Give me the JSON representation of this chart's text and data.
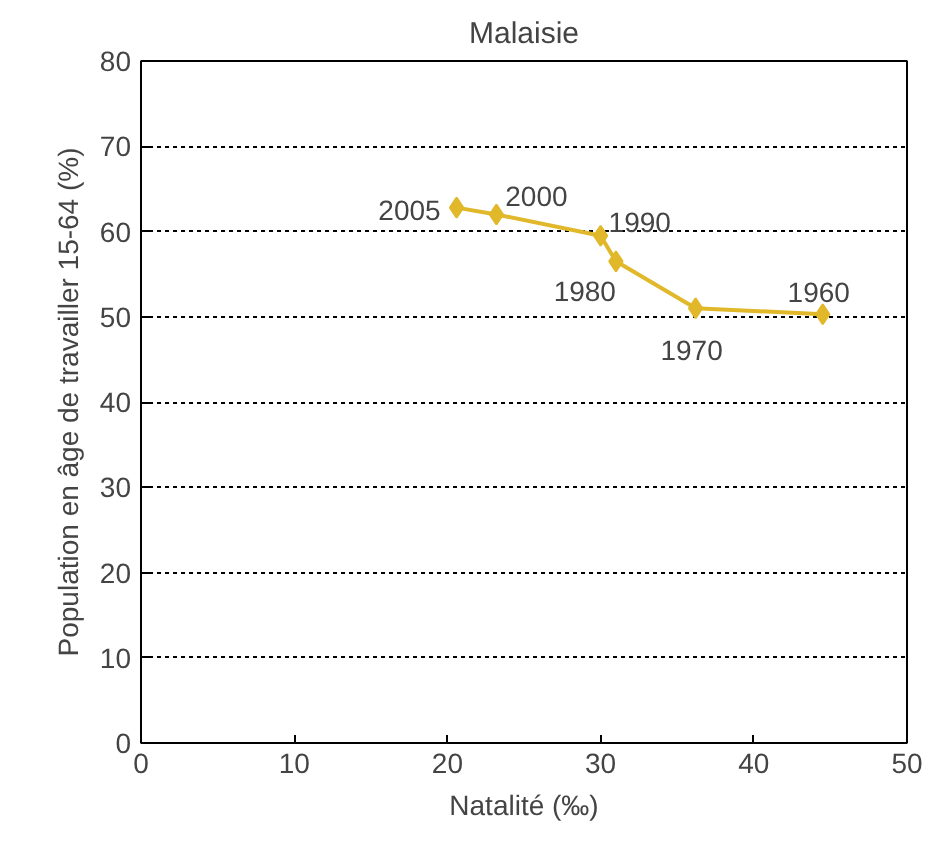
{
  "chart_data": {
    "type": "line",
    "title": "Malaisie",
    "xlabel": "Natalité (‰)",
    "ylabel": "Population en âge de travailler 15-64 (%)",
    "x": [
      44.5,
      36.2,
      31,
      30,
      23.2,
      20.6
    ],
    "series": [
      {
        "color": "#e0b82a",
        "values": [
          50.3,
          51,
          56.5,
          59.5,
          62,
          62.8
        ]
      }
    ],
    "xlim": [
      0,
      50
    ],
    "xticks": [
      0,
      10,
      20,
      30,
      40,
      50
    ],
    "ylim": [
      0,
      80
    ],
    "yticks": [
      0,
      10,
      20,
      30,
      40,
      50,
      60,
      70,
      80
    ],
    "grid": "y",
    "marker": "diamond",
    "line_style": "solid",
    "annotations": [
      {
        "text": "1960",
        "x": 44.5,
        "y": 50.3
      },
      {
        "text": "1970",
        "x": 36.2,
        "y": 51
      },
      {
        "text": "1980",
        "x": 31,
        "y": 56.5
      },
      {
        "text": "1990",
        "x": 30,
        "y": 59.5
      },
      {
        "text": "2000",
        "x": 23.2,
        "y": 62
      },
      {
        "text": "2005",
        "x": 20.6,
        "y": 62.8
      }
    ]
  }
}
